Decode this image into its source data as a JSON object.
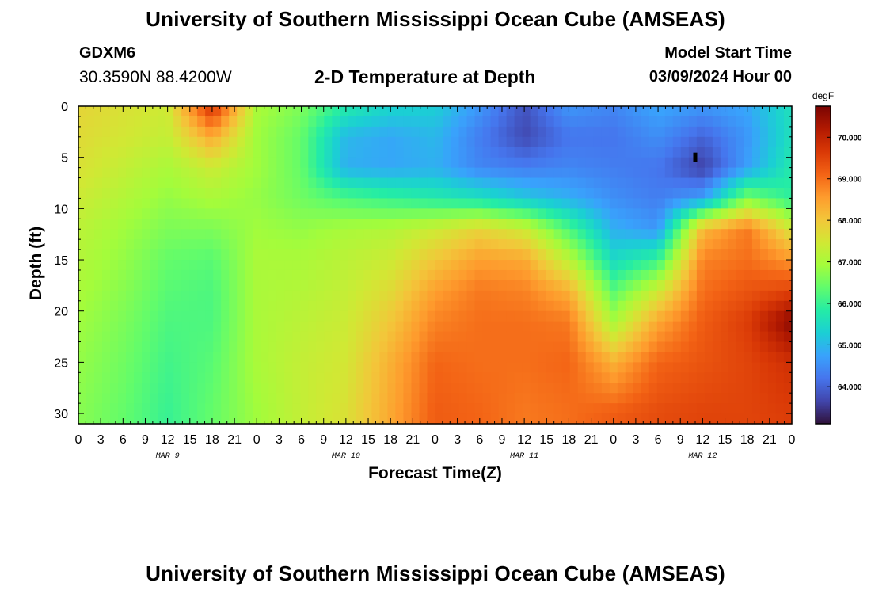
{
  "header": {
    "title": "University of Southern Mississippi Ocean Cube (AMSEAS)",
    "station_id": "GDXM6",
    "coordinates": "30.3590N  88.4200W",
    "subtitle": "2-D Temperature at Depth",
    "start_label": "Model Start Time",
    "start_value": "03/09/2024 Hour 00"
  },
  "footer": {
    "title": "University of Southern Mississippi Ocean Cube (AMSEAS)"
  },
  "chart_data": {
    "type": "heatmap",
    "xlabel": "Forecast Time(Z)",
    "ylabel": "Depth (ft)",
    "x_tick_labels": [
      "0",
      "3",
      "6",
      "9",
      "12",
      "15",
      "18",
      "21",
      "0",
      "3",
      "6",
      "9",
      "12",
      "15",
      "18",
      "21",
      "0",
      "3",
      "6",
      "9",
      "12",
      "15",
      "18",
      "21",
      "0",
      "3",
      "6",
      "9",
      "12",
      "15",
      "18",
      "21",
      "0"
    ],
    "x_range_hours": [
      0,
      96
    ],
    "date_labels": [
      {
        "label": "MAR 9",
        "hour": 12
      },
      {
        "label": "MAR 10",
        "hour": 36
      },
      {
        "label": "MAR 11",
        "hour": 60
      },
      {
        "label": "MAR 12",
        "hour": 84
      }
    ],
    "y_ticks": [
      0,
      5,
      10,
      15,
      20,
      25,
      30
    ],
    "y_range_ft": [
      0,
      31
    ],
    "y_inverted": true,
    "colorbar": {
      "unit": "degF",
      "range": [
        63.1,
        70.75
      ],
      "ticks": [
        "64.000",
        "65.000",
        "66.000",
        "67.000",
        "68.000",
        "69.000",
        "70.000"
      ],
      "tick_values": [
        64,
        65,
        66,
        67,
        68,
        69,
        70
      ],
      "colormap": [
        "#30123b",
        "#4145ab",
        "#4675ed",
        "#39a2fc",
        "#1bcfd4",
        "#24eca6",
        "#61fc6c",
        "#a4fc3b",
        "#d1e834",
        "#f3c63a",
        "#fe9b2d",
        "#f36315",
        "#d93806",
        "#b11901",
        "#7a0403"
      ]
    },
    "temperature_grid_degF": {
      "hours": [
        0,
        6,
        12,
        18,
        24,
        30,
        36,
        42,
        48,
        54,
        60,
        66,
        72,
        78,
        84,
        90,
        96
      ],
      "depths_ft": [
        0,
        3,
        6,
        9,
        12,
        15,
        18,
        21,
        25,
        30
      ],
      "values": [
        [
          67.8,
          67.6,
          67.4,
          69.8,
          67.0,
          66.6,
          65.8,
          65.4,
          65.3,
          64.6,
          63.8,
          64.6,
          64.4,
          64.8,
          64.6,
          64.8,
          65.6
        ],
        [
          67.7,
          67.5,
          67.3,
          68.4,
          66.9,
          66.4,
          65.0,
          64.8,
          65.0,
          64.3,
          63.7,
          64.2,
          64.2,
          64.5,
          64.0,
          64.6,
          65.6
        ],
        [
          67.6,
          67.3,
          67.0,
          67.4,
          66.9,
          66.4,
          64.9,
          64.8,
          64.9,
          64.4,
          64.3,
          64.4,
          64.3,
          64.2,
          63.6,
          64.7,
          65.8
        ],
        [
          67.4,
          67.1,
          66.8,
          67.0,
          66.8,
          66.5,
          66.2,
          66.0,
          65.8,
          65.6,
          65.2,
          64.9,
          64.5,
          64.3,
          64.7,
          66.6,
          65.9
        ],
        [
          67.2,
          66.9,
          66.6,
          66.6,
          66.9,
          66.8,
          67.0,
          67.1,
          67.4,
          67.8,
          67.4,
          66.2,
          64.9,
          64.6,
          68.2,
          68.9,
          67.5
        ],
        [
          67.1,
          66.8,
          66.4,
          66.3,
          67.0,
          67.0,
          67.2,
          67.4,
          68.0,
          68.5,
          68.4,
          67.2,
          65.5,
          66.0,
          68.8,
          69.0,
          68.6
        ],
        [
          67.0,
          66.7,
          66.3,
          66.2,
          67.0,
          67.1,
          67.3,
          67.7,
          68.5,
          68.9,
          68.8,
          68.3,
          66.3,
          67.4,
          69.0,
          69.3,
          69.5
        ],
        [
          66.9,
          66.6,
          66.2,
          66.2,
          67.0,
          67.2,
          67.4,
          68.0,
          68.8,
          69.0,
          69.0,
          68.9,
          67.0,
          68.4,
          69.2,
          69.6,
          70.6
        ],
        [
          66.8,
          66.5,
          66.1,
          66.3,
          67.0,
          67.3,
          67.5,
          68.3,
          69.1,
          69.0,
          69.0,
          69.1,
          68.3,
          69.1,
          69.3,
          69.5,
          69.8
        ],
        [
          66.7,
          66.4,
          66.0,
          66.4,
          66.9,
          67.3,
          67.6,
          68.4,
          69.2,
          69.1,
          68.9,
          69.0,
          69.2,
          69.4,
          69.5,
          69.5,
          69.6
        ]
      ]
    },
    "marker": {
      "hour": 83,
      "depth_ft": 5
    }
  }
}
